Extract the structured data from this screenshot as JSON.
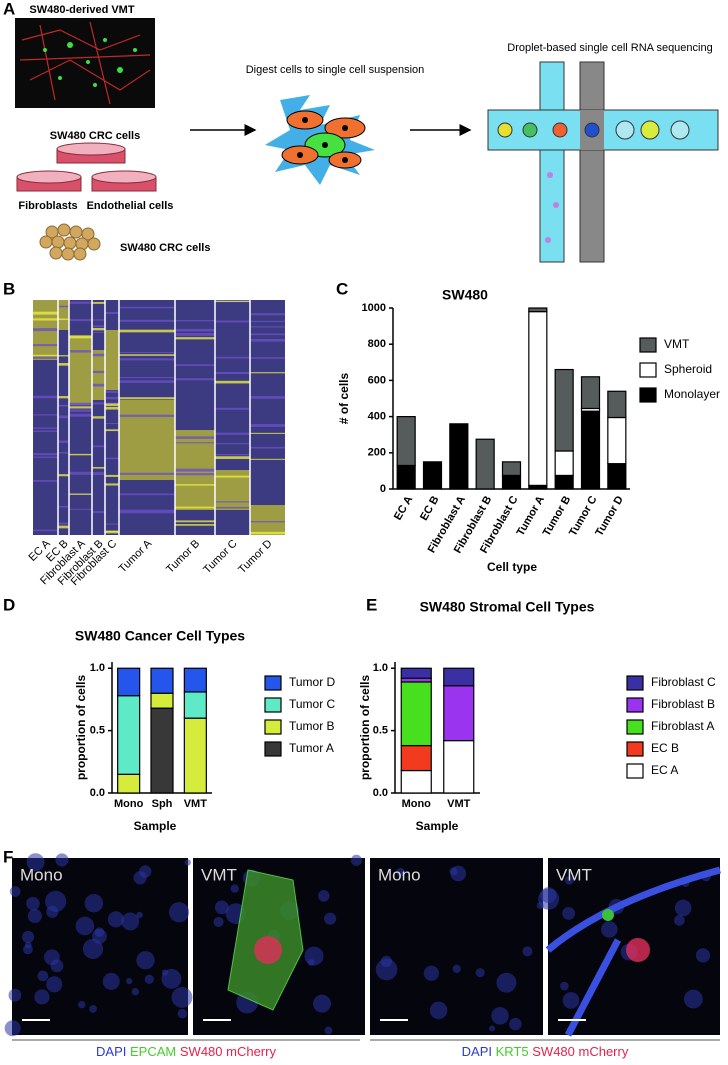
{
  "panel_labels": [
    "A",
    "B",
    "C",
    "D",
    "E",
    "F"
  ],
  "panel_a": {
    "vmt_label": "SW480-derived VMT",
    "crc_label": "SW480 CRC cells",
    "fibroblasts": "Fibroblasts",
    "endothelial": "Endothelial cells",
    "crc_label_2": "SW480 CRC cells",
    "digest": "Digest cells to single cell suspension",
    "sequencing": "Droplet-based single cell RNA sequencing"
  },
  "panel_b": {
    "clusters": [
      "EC A",
      "EC B",
      "Fibroblast A",
      "Fibroblast B",
      "Fibroblast C",
      "Tumor A",
      "Tumor B",
      "Tumor C",
      "Tumor D"
    ]
  },
  "chart_data": [
    {
      "type": "bar",
      "stacked": true,
      "title": "SW480",
      "xlabel": "Cell type",
      "ylabel": "# of cells",
      "categories": [
        "EC A",
        "EC B",
        "Fibroblast A",
        "Fibroblast B",
        "Fibroblast C",
        "Tumor A",
        "Tumor B",
        "Tumor C",
        "Tumor D"
      ],
      "series": [
        {
          "name": "Monolayer",
          "color": "#000000",
          "values": [
            130,
            150,
            360,
            0,
            75,
            20,
            75,
            430,
            140
          ]
        },
        {
          "name": "Spheroid",
          "color": "#ffffff",
          "values": [
            0,
            0,
            0,
            0,
            0,
            960,
            135,
            15,
            255
          ]
        },
        {
          "name": "VMT",
          "color": "#565b5b",
          "values": [
            270,
            0,
            0,
            275,
            75,
            20,
            450,
            175,
            145
          ]
        }
      ],
      "ylim": [
        0,
        1000
      ],
      "yticks": [
        0,
        200,
        400,
        600,
        800,
        1000
      ],
      "legend": "right"
    },
    {
      "type": "bar",
      "stacked": true,
      "title": "SW480 Cancer Cell Types",
      "xlabel": "Sample",
      "ylabel": "proportion of cells",
      "categories": [
        "Mono",
        "Sph",
        "VMT"
      ],
      "series": [
        {
          "name": "Tumor A",
          "color": "#383838",
          "values": [
            0,
            0.68,
            0
          ]
        },
        {
          "name": "Tumor B",
          "color": "#d6ec3c",
          "values": [
            0.15,
            0.12,
            0.6
          ]
        },
        {
          "name": "Tumor C",
          "color": "#5eeac6",
          "values": [
            0.63,
            0,
            0.21
          ]
        },
        {
          "name": "Tumor D",
          "color": "#2456ec",
          "values": [
            0.22,
            0.2,
            0.19
          ]
        }
      ],
      "ylim": [
        0,
        1.05
      ],
      "yticks": [
        {
          "value": 0,
          "label": "0.0"
        },
        {
          "value": 0.5,
          "label": "0.5"
        },
        {
          "value": 1,
          "label": "1.0"
        }
      ],
      "legend": "right"
    },
    {
      "type": "bar",
      "stacked": true,
      "title": "SW480 Stromal Cell Types",
      "xlabel": "Sample",
      "ylabel": "proportion of cells",
      "categories": [
        "Mono",
        "VMT"
      ],
      "series": [
        {
          "name": "EC A",
          "color": "#ffffff",
          "values": [
            0.18,
            0.42
          ]
        },
        {
          "name": "EC B",
          "color": "#f23a1e",
          "values": [
            0.2,
            0
          ]
        },
        {
          "name": "Fibroblast A",
          "color": "#46e01e",
          "values": [
            0.51,
            0
          ]
        },
        {
          "name": "Fibroblast B",
          "color": "#9a34ee",
          "values": [
            0.03,
            0.44
          ]
        },
        {
          "name": "Fibroblast C",
          "color": "#3a30a4",
          "values": [
            0.08,
            0.14
          ]
        }
      ],
      "ylim": [
        0,
        1.05
      ],
      "yticks": [
        {
          "value": 0,
          "label": "0.0"
        },
        {
          "value": 0.5,
          "label": "0.5"
        },
        {
          "value": 1,
          "label": "1.0"
        }
      ],
      "legend": "right"
    }
  ],
  "panel_f": {
    "images": [
      "Mono",
      "VMT",
      "Mono",
      "VMT"
    ],
    "captions": [
      [
        {
          "text": "DAPI",
          "color": "#2a3ad8"
        },
        {
          "text": "EPCAM",
          "color": "#44cc2a"
        },
        {
          "text": "SW480 mCherry",
          "color": "#e8204a"
        }
      ],
      [
        {
          "text": "DAPI",
          "color": "#2a3ad8"
        },
        {
          "text": "KRT5",
          "color": "#44cc2a"
        },
        {
          "text": "SW480 mCherry",
          "color": "#e8204a"
        }
      ]
    ]
  }
}
